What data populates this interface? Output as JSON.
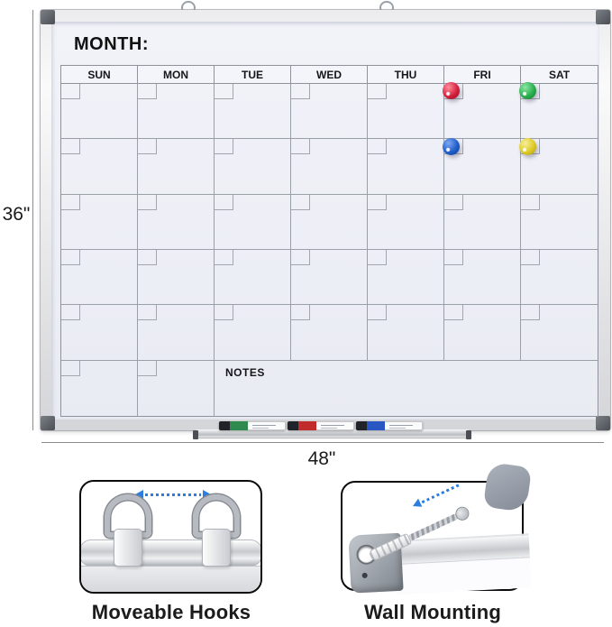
{
  "board": {
    "month_label": "MONTH:",
    "day_headers": [
      "SUN",
      "MON",
      "TUE",
      "WED",
      "THU",
      "FRI",
      "SAT"
    ],
    "weeks": 6,
    "notes_label": "NOTES",
    "magnets": [
      {
        "color": "red",
        "day": "FRI",
        "week": 1,
        "hi": "#ff8f9d",
        "mid": "#d6203c",
        "lo": "#8c0f22"
      },
      {
        "color": "green",
        "day": "SAT",
        "week": 1,
        "hi": "#8ce6a4",
        "mid": "#2aaf4d",
        "lo": "#157a30"
      },
      {
        "color": "blue",
        "day": "FRI",
        "week": 2,
        "hi": "#7fa8ef",
        "mid": "#1f5ecb",
        "lo": "#113c8e"
      },
      {
        "color": "yellow",
        "day": "SAT",
        "week": 2,
        "hi": "#f6ee9a",
        "mid": "#e0cb26",
        "lo": "#a3940f"
      }
    ],
    "markers": [
      {
        "color": "green",
        "hex": "#2e8a4e"
      },
      {
        "color": "red",
        "hex": "#c22b2b"
      },
      {
        "color": "blue",
        "hex": "#2857c4"
      }
    ]
  },
  "dimensions": {
    "height_label": "36\"",
    "width_label": "48\""
  },
  "callouts": [
    {
      "label": "Moveable Hooks"
    },
    {
      "label": "Wall Mounting"
    }
  ],
  "colors": {
    "frame_silver": "#d7d8db",
    "board_surface": "#edeff6",
    "grid_line": "#8f929b",
    "accent_arrow_blue": "#2b7de0",
    "corner_cap_gray": "#5a5e64"
  }
}
